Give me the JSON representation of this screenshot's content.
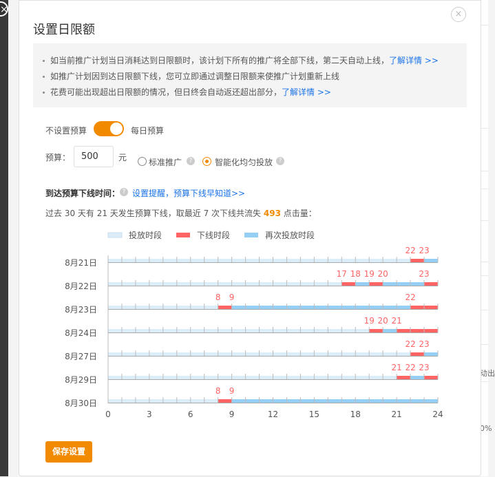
{
  "dialog": {
    "title": "设置日限额",
    "notices": [
      {
        "text": "如当前推广计划当日消耗达到日限额时，该计划下所有的推广将全部下线，第二天自动上线，",
        "link": "了解详情 >>"
      },
      {
        "text": "如推广计划因到达日限额下线，您可立即通过调整日限额来使推广计划重新上线",
        "link": ""
      },
      {
        "text": "花费可能出现超出日限额的情况，但日终会自动返还超出部分，",
        "link": "了解详情 >>"
      }
    ],
    "toggle": {
      "left_label": "不设置预算",
      "right_label": "每日预算",
      "on": true
    },
    "budget": {
      "label": "预算：",
      "value": "500",
      "unit": "元"
    },
    "delivery": {
      "options": [
        "标准推广",
        "智能化均匀投放"
      ],
      "selected": "智能化均匀投放"
    },
    "offline": {
      "heading": "到达预算下线时间：",
      "link": "设置提醒，预算下线早知道>>",
      "summary_prefix": "过去 30 天有 21 天发生预算下线，取最近 7 次下线共流失 ",
      "lost_clicks": "493",
      "summary_suffix": " 点击量："
    },
    "save_label": "保存设置"
  },
  "background": {
    "fragments": [
      "动出",
      "0%"
    ]
  },
  "colors": {
    "accent": "#f28a00",
    "online": "#dcedfa",
    "offline": "#ff6464",
    "resumed": "#96cff5",
    "link": "#1a73e8"
  },
  "chart_data": {
    "type": "timeline",
    "legend": [
      "投放时段",
      "下线时段",
      "再次投放时段"
    ],
    "xlim": [
      0,
      24
    ],
    "xticks": [
      "0",
      "3",
      "6",
      "9",
      "12",
      "15",
      "18",
      "21",
      "24"
    ],
    "categories": [
      "8月21日",
      "8月22日",
      "8月23日",
      "8月24日",
      "8月27日",
      "8月29日",
      "8月30日"
    ],
    "days": [
      {
        "offline_hours": [
          22
        ],
        "resumed_hours": [
          23
        ],
        "labels": [
          "22",
          "23"
        ]
      },
      {
        "offline_hours": [
          17,
          19,
          23
        ],
        "resumed_hours": [
          18,
          20,
          21,
          22
        ],
        "labels": [
          "17",
          "18",
          "19",
          "20",
          "23"
        ]
      },
      {
        "offline_hours": [
          8,
          22,
          23
        ],
        "resumed_hours": [
          9,
          10,
          11,
          12,
          13,
          14,
          15,
          16,
          17,
          18,
          19,
          20,
          21
        ],
        "labels": [
          "8",
          "9",
          "22"
        ]
      },
      {
        "offline_hours": [
          19,
          21,
          22,
          23
        ],
        "resumed_hours": [
          20
        ],
        "labels": [
          "19",
          "20",
          "21"
        ]
      },
      {
        "offline_hours": [
          22
        ],
        "resumed_hours": [
          23
        ],
        "labels": [
          "22",
          "23"
        ]
      },
      {
        "offline_hours": [
          21,
          23
        ],
        "resumed_hours": [
          22
        ],
        "labels": [
          "21",
          "22",
          "23"
        ]
      },
      {
        "offline_hours": [
          8
        ],
        "resumed_hours": [
          9,
          10,
          11,
          12,
          13,
          14,
          15,
          16,
          17,
          18,
          19,
          20,
          21,
          22,
          23
        ],
        "labels": [
          "8",
          "9"
        ]
      }
    ]
  }
}
